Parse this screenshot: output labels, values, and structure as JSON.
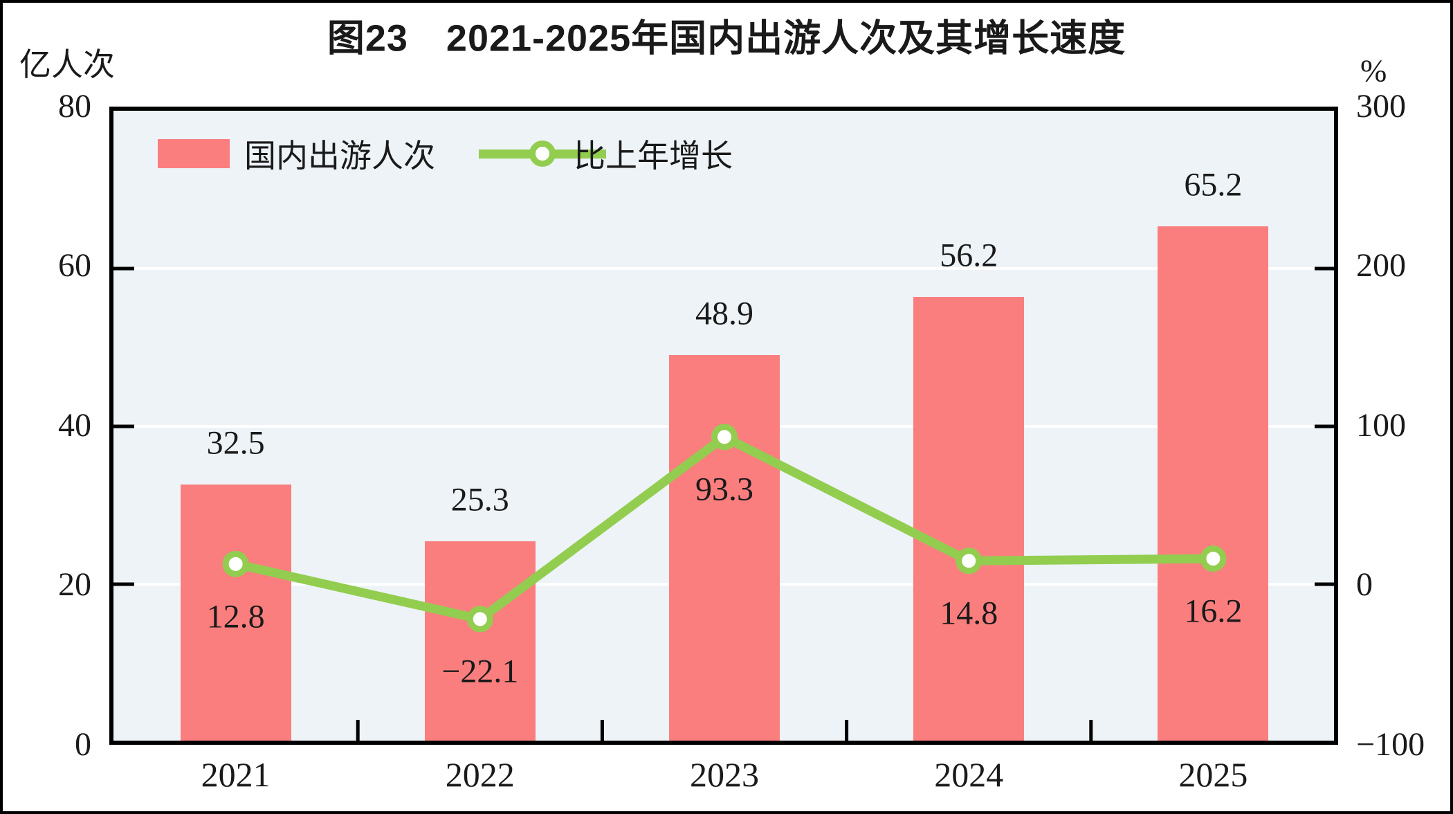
{
  "title": "图23　2021-2025年国内出游人次及其增长速度",
  "axes": {
    "left_unit": "亿人次",
    "right_unit": "%",
    "left_ticks": [
      "80",
      "60",
      "40",
      "20",
      "0"
    ],
    "right_ticks": [
      "300",
      "200",
      "100",
      "0",
      "−100"
    ]
  },
  "legend": {
    "bar_label": "国内出游人次",
    "line_label": "比上年增长"
  },
  "colors": {
    "bar": "#FB7E7E",
    "line": "#92CD50",
    "marker_fill": "#FFFFFF",
    "plot_background": "#EDF3F7",
    "gridline": "#FFFFFF",
    "axis": "#000000",
    "text": "#1A1A1A"
  },
  "chart_data": {
    "type": "bar",
    "subtype": "bar+line combo, dual axis",
    "title": "图23 2021-2025年国内出游人次及其增长速度",
    "categories": [
      "2021",
      "2022",
      "2023",
      "2024",
      "2025"
    ],
    "series": [
      {
        "name": "国内出游人次",
        "type": "bar",
        "axis": "left",
        "unit": "亿人次",
        "values": [
          32.5,
          25.3,
          48.9,
          56.2,
          65.2
        ],
        "labels": [
          "32.5",
          "25.3",
          "48.9",
          "56.2",
          "65.2"
        ]
      },
      {
        "name": "比上年增长",
        "type": "line",
        "axis": "right",
        "unit": "%",
        "values": [
          12.8,
          -22.1,
          93.3,
          14.8,
          16.2
        ],
        "labels": [
          "12.8",
          "−22.1",
          "93.3",
          "14.8",
          "16.2"
        ]
      }
    ],
    "left_axis": {
      "label": "亿人次",
      "min": 0,
      "max": 80,
      "tick_step": 20
    },
    "right_axis": {
      "label": "%",
      "min": -100,
      "max": 300,
      "tick_step": 100
    },
    "grid": true,
    "legend_position": "top-left-inside"
  }
}
